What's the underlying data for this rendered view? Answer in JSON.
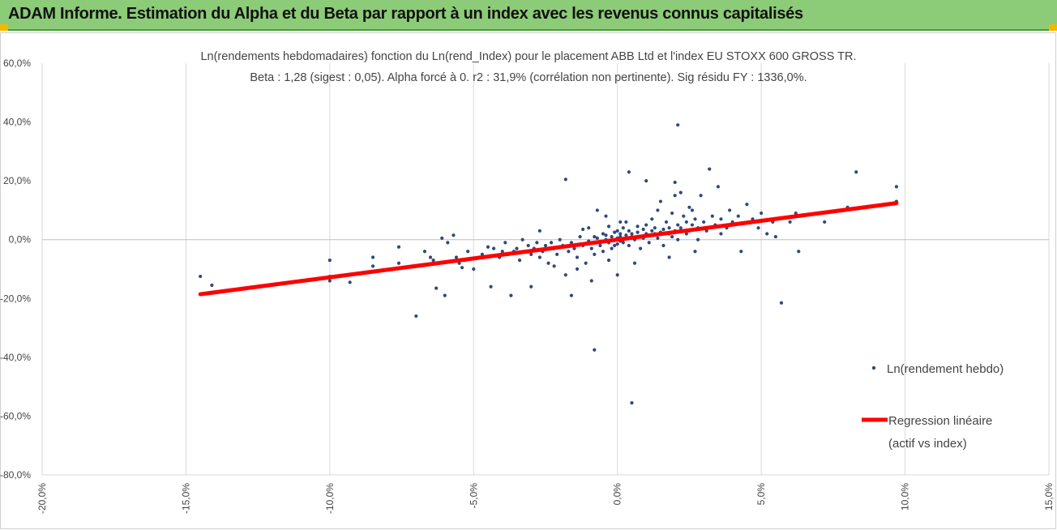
{
  "header": {
    "title": "ADAM Informe. Estimation du Alpha et du Beta par rapport à un index avec les revenus connus capitalisés"
  },
  "chart_data": {
    "type": "scatter",
    "title": "Ln(rendements hebdomadaires) fonction du Ln(rend_Index) pour le placement ABB Ltd et l'index EU STOXX  600 GROSS TR.",
    "subtitle": "Beta : 1,28 (sigest : 0,05). Alpha forcé à 0. r2 : 31,9% (corrélation non pertinente). Sig résidu FY : 1336,0%.",
    "xlim": [
      -0.2,
      0.15
    ],
    "ylim": [
      -0.8,
      0.6
    ],
    "x_ticks": [
      "-20,0%",
      "-15,0%",
      "-10,0%",
      "-5,0%",
      "0,0%",
      "5,0%",
      "10,0%",
      "15,0%"
    ],
    "y_ticks": [
      "60,0%",
      "40,0%",
      "20,0%",
      "0,0%",
      "-20,0%",
      "-40,0%",
      "-60,0%",
      "-80,0%"
    ],
    "grid": {
      "vertical": true,
      "horizontal": false
    },
    "legend_position": "right",
    "series": [
      {
        "name": "Ln(rendement hebdo)",
        "kind": "points",
        "color": "#2e4a7d",
        "points": [
          [
            -0.145,
            -0.125
          ],
          [
            -0.141,
            -0.155
          ],
          [
            -0.1,
            -0.07
          ],
          [
            -0.1,
            -0.125
          ],
          [
            -0.1,
            -0.14
          ],
          [
            -0.093,
            -0.145
          ],
          [
            -0.085,
            -0.06
          ],
          [
            -0.085,
            -0.09
          ],
          [
            -0.076,
            -0.025
          ],
          [
            -0.076,
            -0.08
          ],
          [
            -0.07,
            -0.26
          ],
          [
            -0.067,
            -0.04
          ],
          [
            -0.065,
            -0.06
          ],
          [
            -0.064,
            -0.07
          ],
          [
            -0.063,
            -0.165
          ],
          [
            -0.061,
            0.005
          ],
          [
            -0.06,
            -0.19
          ],
          [
            -0.059,
            -0.01
          ],
          [
            -0.057,
            0.015
          ],
          [
            -0.056,
            -0.06
          ],
          [
            -0.055,
            -0.08
          ],
          [
            -0.054,
            -0.095
          ],
          [
            -0.053,
            -0.07
          ],
          [
            -0.052,
            -0.04
          ],
          [
            -0.05,
            -0.1
          ],
          [
            -0.048,
            -0.06
          ],
          [
            -0.047,
            -0.05
          ],
          [
            -0.045,
            -0.025
          ],
          [
            -0.044,
            -0.16
          ],
          [
            -0.043,
            -0.03
          ],
          [
            -0.041,
            -0.06
          ],
          [
            -0.04,
            -0.04
          ],
          [
            -0.039,
            -0.01
          ],
          [
            -0.038,
            -0.05
          ],
          [
            -0.037,
            -0.19
          ],
          [
            -0.036,
            -0.04
          ],
          [
            -0.035,
            -0.03
          ],
          [
            -0.034,
            -0.07
          ],
          [
            -0.032,
            -0.04
          ],
          [
            -0.031,
            -0.02
          ],
          [
            -0.03,
            -0.05
          ],
          [
            -0.029,
            -0.03
          ],
          [
            -0.028,
            -0.01
          ],
          [
            -0.027,
            -0.06
          ],
          [
            -0.026,
            -0.04
          ],
          [
            -0.025,
            -0.02
          ],
          [
            -0.024,
            -0.08
          ],
          [
            -0.023,
            -0.01
          ],
          [
            -0.022,
            -0.03
          ],
          [
            -0.021,
            -0.05
          ],
          [
            -0.02,
            0.0
          ],
          [
            -0.019,
            -0.02
          ],
          [
            -0.018,
            -0.12
          ],
          [
            -0.018,
            0.205
          ],
          [
            -0.017,
            -0.04
          ],
          [
            -0.016,
            -0.01
          ],
          [
            -0.016,
            -0.19
          ],
          [
            -0.015,
            -0.03
          ],
          [
            -0.014,
            -0.06
          ],
          [
            -0.013,
            0.01
          ],
          [
            -0.012,
            -0.02
          ],
          [
            -0.012,
            0.035
          ],
          [
            -0.011,
            -0.08
          ],
          [
            -0.01,
            -0.005
          ],
          [
            -0.01,
            0.04
          ],
          [
            -0.009,
            -0.03
          ],
          [
            -0.009,
            -0.14
          ],
          [
            -0.008,
            0.01
          ],
          [
            -0.008,
            -0.05
          ],
          [
            -0.007,
            0.005
          ],
          [
            -0.007,
            0.1
          ],
          [
            -0.006,
            -0.02
          ],
          [
            -0.006,
            -0.01
          ],
          [
            -0.005,
            0.02
          ],
          [
            -0.005,
            -0.04
          ],
          [
            -0.004,
            0.0
          ],
          [
            -0.004,
            0.015
          ],
          [
            -0.003,
            -0.01
          ],
          [
            -0.003,
            -0.07
          ],
          [
            -0.003,
            0.045
          ],
          [
            -0.002,
            0.01
          ],
          [
            -0.002,
            -0.03
          ],
          [
            -0.001,
            0.0
          ],
          [
            -0.001,
            0.025
          ],
          [
            -0.001,
            -0.02
          ],
          [
            0.0,
            0.005
          ],
          [
            0.0,
            -0.015
          ],
          [
            0.0,
            0.03
          ],
          [
            0.0,
            -0.12
          ],
          [
            0.001,
            0.01
          ],
          [
            0.001,
            -0.005
          ],
          [
            0.001,
            0.02
          ],
          [
            0.002,
            0.0
          ],
          [
            0.002,
            0.04
          ],
          [
            0.002,
            -0.01
          ],
          [
            0.003,
            0.015
          ],
          [
            0.003,
            0.005
          ],
          [
            0.003,
            0.06
          ],
          [
            0.004,
            -0.02
          ],
          [
            0.004,
            0.03
          ],
          [
            0.005,
            0.01
          ],
          [
            0.005,
            -0.555
          ],
          [
            0.005,
            0.02
          ],
          [
            0.006,
            0.0
          ],
          [
            0.006,
            -0.08
          ],
          [
            0.007,
            0.025
          ],
          [
            0.007,
            0.045
          ],
          [
            0.008,
            0.01
          ],
          [
            0.008,
            -0.03
          ],
          [
            0.009,
            0.035
          ],
          [
            0.009,
            0.005
          ],
          [
            0.01,
            0.02
          ],
          [
            0.01,
            0.05
          ],
          [
            0.011,
            0.015
          ],
          [
            0.011,
            -0.01
          ],
          [
            0.012,
            0.03
          ],
          [
            0.012,
            0.07
          ],
          [
            0.013,
            0.02
          ],
          [
            0.013,
            0.04
          ],
          [
            0.014,
            0.005
          ],
          [
            0.015,
            0.025
          ],
          [
            0.015,
            0.13
          ],
          [
            0.016,
            0.035
          ],
          [
            0.016,
            -0.02
          ],
          [
            0.017,
            0.06
          ],
          [
            0.018,
            0.02
          ],
          [
            0.018,
            0.04
          ],
          [
            0.019,
            0.01
          ],
          [
            0.019,
            0.09
          ],
          [
            0.02,
            0.03
          ],
          [
            0.02,
            0.195
          ],
          [
            0.021,
            0.05
          ],
          [
            0.021,
            0.0
          ],
          [
            0.022,
            0.04
          ],
          [
            0.022,
            0.16
          ],
          [
            0.023,
            0.08
          ],
          [
            0.024,
            0.02
          ],
          [
            0.024,
            0.06
          ],
          [
            0.025,
            0.03
          ],
          [
            0.025,
            0.11
          ],
          [
            0.026,
            0.05
          ],
          [
            0.027,
            0.07
          ],
          [
            0.027,
            -0.04
          ],
          [
            0.028,
            0.04
          ],
          [
            0.029,
            0.15
          ],
          [
            0.03,
            0.06
          ],
          [
            0.031,
            0.03
          ],
          [
            0.032,
            0.24
          ],
          [
            0.033,
            0.08
          ],
          [
            0.034,
            0.05
          ],
          [
            0.035,
            0.18
          ],
          [
            0.036,
            0.07
          ],
          [
            0.038,
            0.04
          ],
          [
            0.039,
            0.1
          ],
          [
            0.04,
            0.06
          ],
          [
            0.042,
            0.08
          ],
          [
            0.043,
            -0.04
          ],
          [
            0.045,
            0.12
          ],
          [
            0.047,
            0.07
          ],
          [
            0.049,
            0.04
          ],
          [
            0.05,
            0.09
          ],
          [
            0.052,
            0.02
          ],
          [
            0.054,
            0.06
          ],
          [
            0.055,
            0.01
          ],
          [
            0.057,
            -0.215
          ],
          [
            0.06,
            0.06
          ],
          [
            0.062,
            0.09
          ],
          [
            0.063,
            -0.04
          ],
          [
            0.072,
            0.06
          ],
          [
            0.08,
            0.11
          ],
          [
            0.083,
            0.23
          ],
          [
            0.097,
            0.18
          ],
          [
            0.097,
            0.13
          ],
          [
            0.021,
            0.39
          ],
          [
            0.004,
            0.23
          ],
          [
            0.01,
            0.2
          ],
          [
            -0.008,
            -0.375
          ],
          [
            -0.03,
            -0.16
          ],
          [
            -0.022,
            -0.09
          ],
          [
            -0.014,
            -0.1
          ],
          [
            -0.027,
            0.03
          ],
          [
            -0.033,
            0.0
          ],
          [
            0.014,
            0.1
          ],
          [
            0.02,
            0.15
          ],
          [
            0.026,
            0.1
          ],
          [
            0.001,
            0.06
          ],
          [
            -0.004,
            0.08
          ],
          [
            0.018,
            -0.06
          ],
          [
            0.028,
            0.0
          ],
          [
            0.036,
            0.02
          ]
        ]
      },
      {
        "name": "Regression linéaire (actif vs index)",
        "kind": "line",
        "color": "#ff0000",
        "points": [
          [
            -0.145,
            -0.1856
          ],
          [
            0.097,
            0.1242
          ]
        ]
      }
    ],
    "legend": {
      "scatter_label": "Ln(rendement hebdo)",
      "line_label_1": "Regression linéaire",
      "line_label_2": "(actif vs index)"
    }
  }
}
